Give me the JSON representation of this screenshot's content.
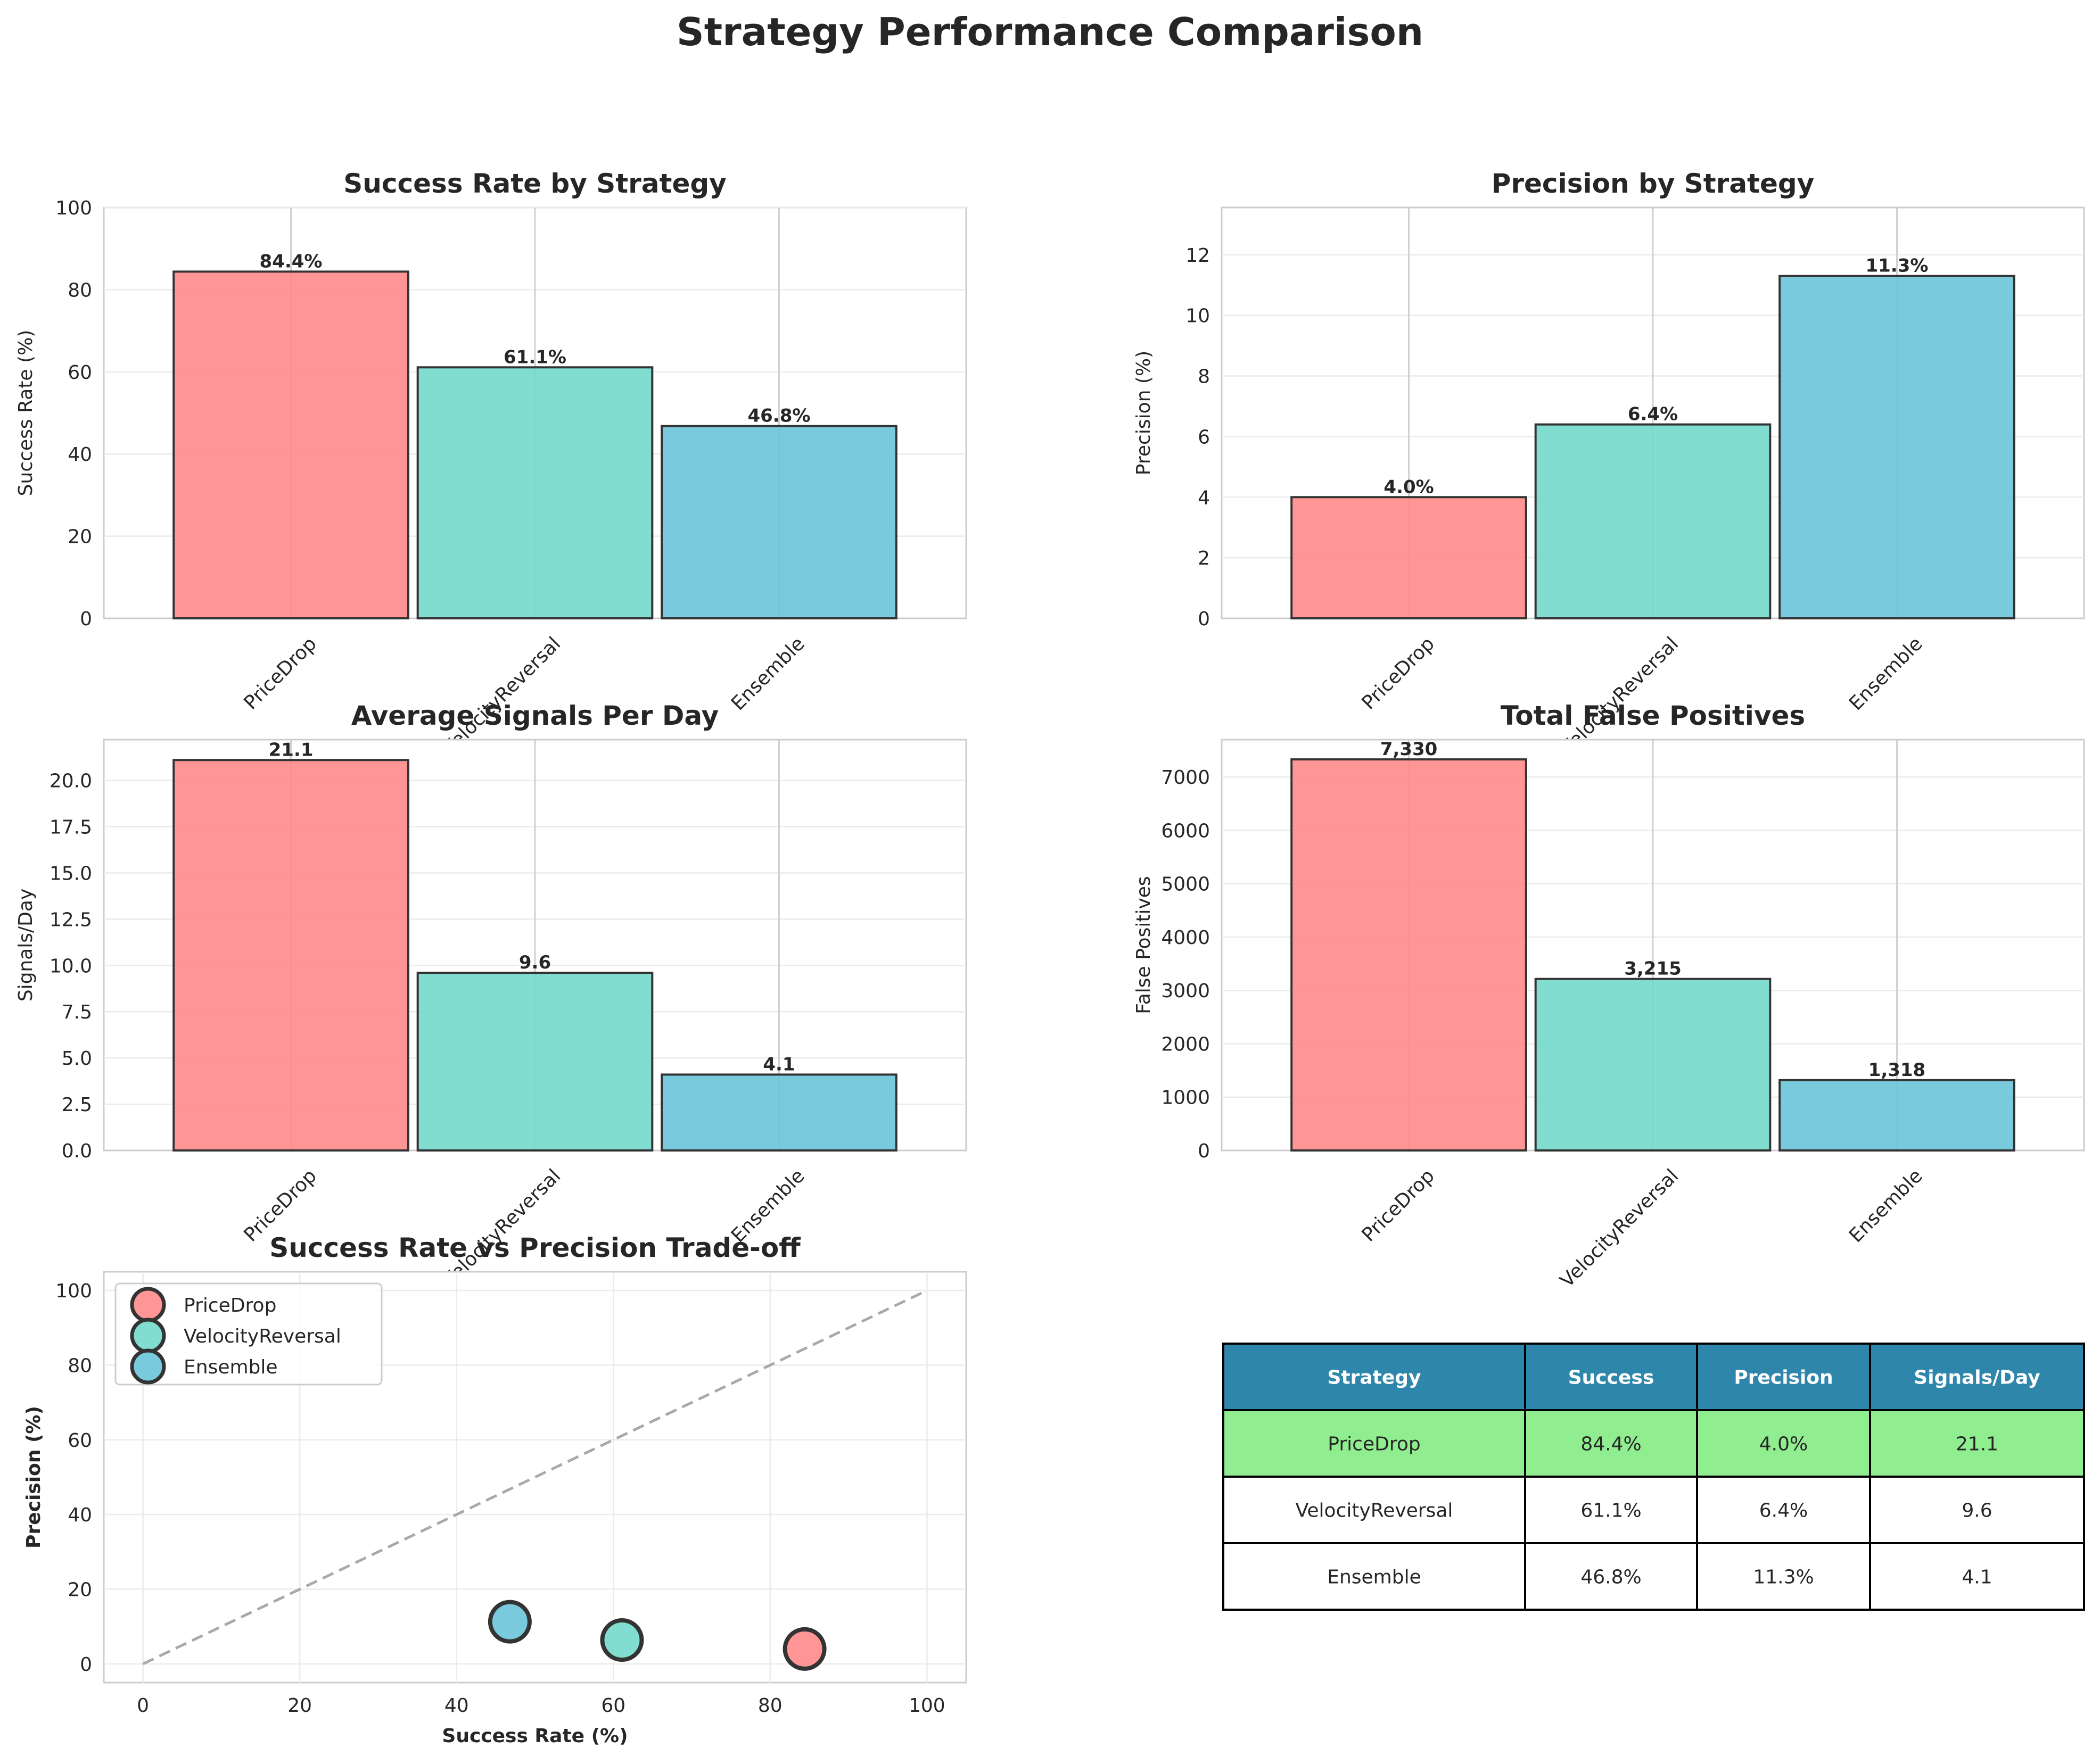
{
  "figure": {
    "title": "Strategy Performance Comparison"
  },
  "colors": {
    "PriceDrop": "#ff8a8a",
    "VelocityReversal": "#72d9cb",
    "Ensemble": "#6cc4d9",
    "header": "#2e87ab",
    "highlight": "#90ee90",
    "diagonal": "#a9a9a9",
    "edge": "#333333"
  },
  "chart_data": [
    {
      "id": "success",
      "type": "bar",
      "title": "Success Rate by Strategy",
      "ylabel": "Success Rate (%)",
      "categories": [
        "PriceDrop",
        "VelocityReversal",
        "Ensemble"
      ],
      "values": [
        84.4,
        61.1,
        46.8
      ],
      "value_labels": [
        "84.4%",
        "61.1%",
        "46.8%"
      ],
      "ylim": [
        0,
        100
      ],
      "yticks": [
        0,
        20,
        40,
        60,
        80,
        100
      ],
      "ytick_labels": [
        "0",
        "20",
        "40",
        "60",
        "80",
        "100"
      ]
    },
    {
      "id": "precision",
      "type": "bar",
      "title": "Precision by Strategy",
      "ylabel": "Precision (%)",
      "categories": [
        "PriceDrop",
        "VelocityReversal",
        "Ensemble"
      ],
      "values": [
        4.0,
        6.4,
        11.3
      ],
      "value_labels": [
        "4.0%",
        "6.4%",
        "11.3%"
      ],
      "ylim": [
        0,
        13.56
      ],
      "yticks": [
        0,
        2,
        4,
        6,
        8,
        10,
        12
      ],
      "ytick_labels": [
        "0",
        "2",
        "4",
        "6",
        "8",
        "10",
        "12"
      ]
    },
    {
      "id": "signals",
      "type": "bar",
      "title": "Average Signals Per Day",
      "ylabel": "Signals/Day",
      "categories": [
        "PriceDrop",
        "VelocityReversal",
        "Ensemble"
      ],
      "values": [
        21.1,
        9.6,
        4.1
      ],
      "value_labels": [
        "21.1",
        "9.6",
        "4.1"
      ],
      "ylim": [
        0,
        22.2
      ],
      "yticks": [
        0,
        2.5,
        5,
        7.5,
        10,
        12.5,
        15,
        17.5,
        20
      ],
      "ytick_labels": [
        "0.0",
        "2.5",
        "5.0",
        "7.5",
        "10.0",
        "12.5",
        "15.0",
        "17.5",
        "20.0"
      ]
    },
    {
      "id": "falsepos",
      "type": "bar",
      "title": "Total False Positives",
      "ylabel": "False Positives",
      "categories": [
        "PriceDrop",
        "VelocityReversal",
        "Ensemble"
      ],
      "values": [
        7330,
        3215,
        1318
      ],
      "value_labels": [
        "7,330",
        "3,215",
        "1,318"
      ],
      "ylim": [
        0,
        7700
      ],
      "yticks": [
        0,
        1000,
        2000,
        3000,
        4000,
        5000,
        6000,
        7000
      ],
      "ytick_labels": [
        "0",
        "1000",
        "2000",
        "3000",
        "4000",
        "5000",
        "6000",
        "7000"
      ]
    },
    {
      "id": "tradeoff",
      "type": "scatter",
      "title": "Success Rate vs Precision Trade-off",
      "xlabel": "Success Rate (%)",
      "ylabel": "Precision (%)",
      "xlim": [
        -5,
        105
      ],
      "ylim": [
        -5,
        105
      ],
      "xticks": [
        0,
        20,
        40,
        60,
        80,
        100
      ],
      "yticks": [
        0,
        20,
        40,
        60,
        80,
        100
      ],
      "series": [
        {
          "name": "PriceDrop",
          "x": [
            84.4
          ],
          "y": [
            4.0
          ]
        },
        {
          "name": "VelocityReversal",
          "x": [
            61.1
          ],
          "y": [
            6.4
          ]
        },
        {
          "name": "Ensemble",
          "x": [
            46.8
          ],
          "y": [
            11.3
          ]
        }
      ],
      "reference_line": {
        "x": [
          0,
          100
        ],
        "y": [
          0,
          100
        ],
        "style": "dashed"
      },
      "legend": "upper-left"
    },
    {
      "id": "summary",
      "type": "table",
      "columns": [
        "Strategy",
        "Success",
        "Precision",
        "Signals/Day"
      ],
      "rows": [
        [
          "PriceDrop",
          "84.4%",
          "4.0%",
          "21.1"
        ],
        [
          "VelocityReversal",
          "61.1%",
          "6.4%",
          "9.6"
        ],
        [
          "Ensemble",
          "46.8%",
          "11.3%",
          "4.1"
        ]
      ],
      "highlight_row": 0
    }
  ]
}
